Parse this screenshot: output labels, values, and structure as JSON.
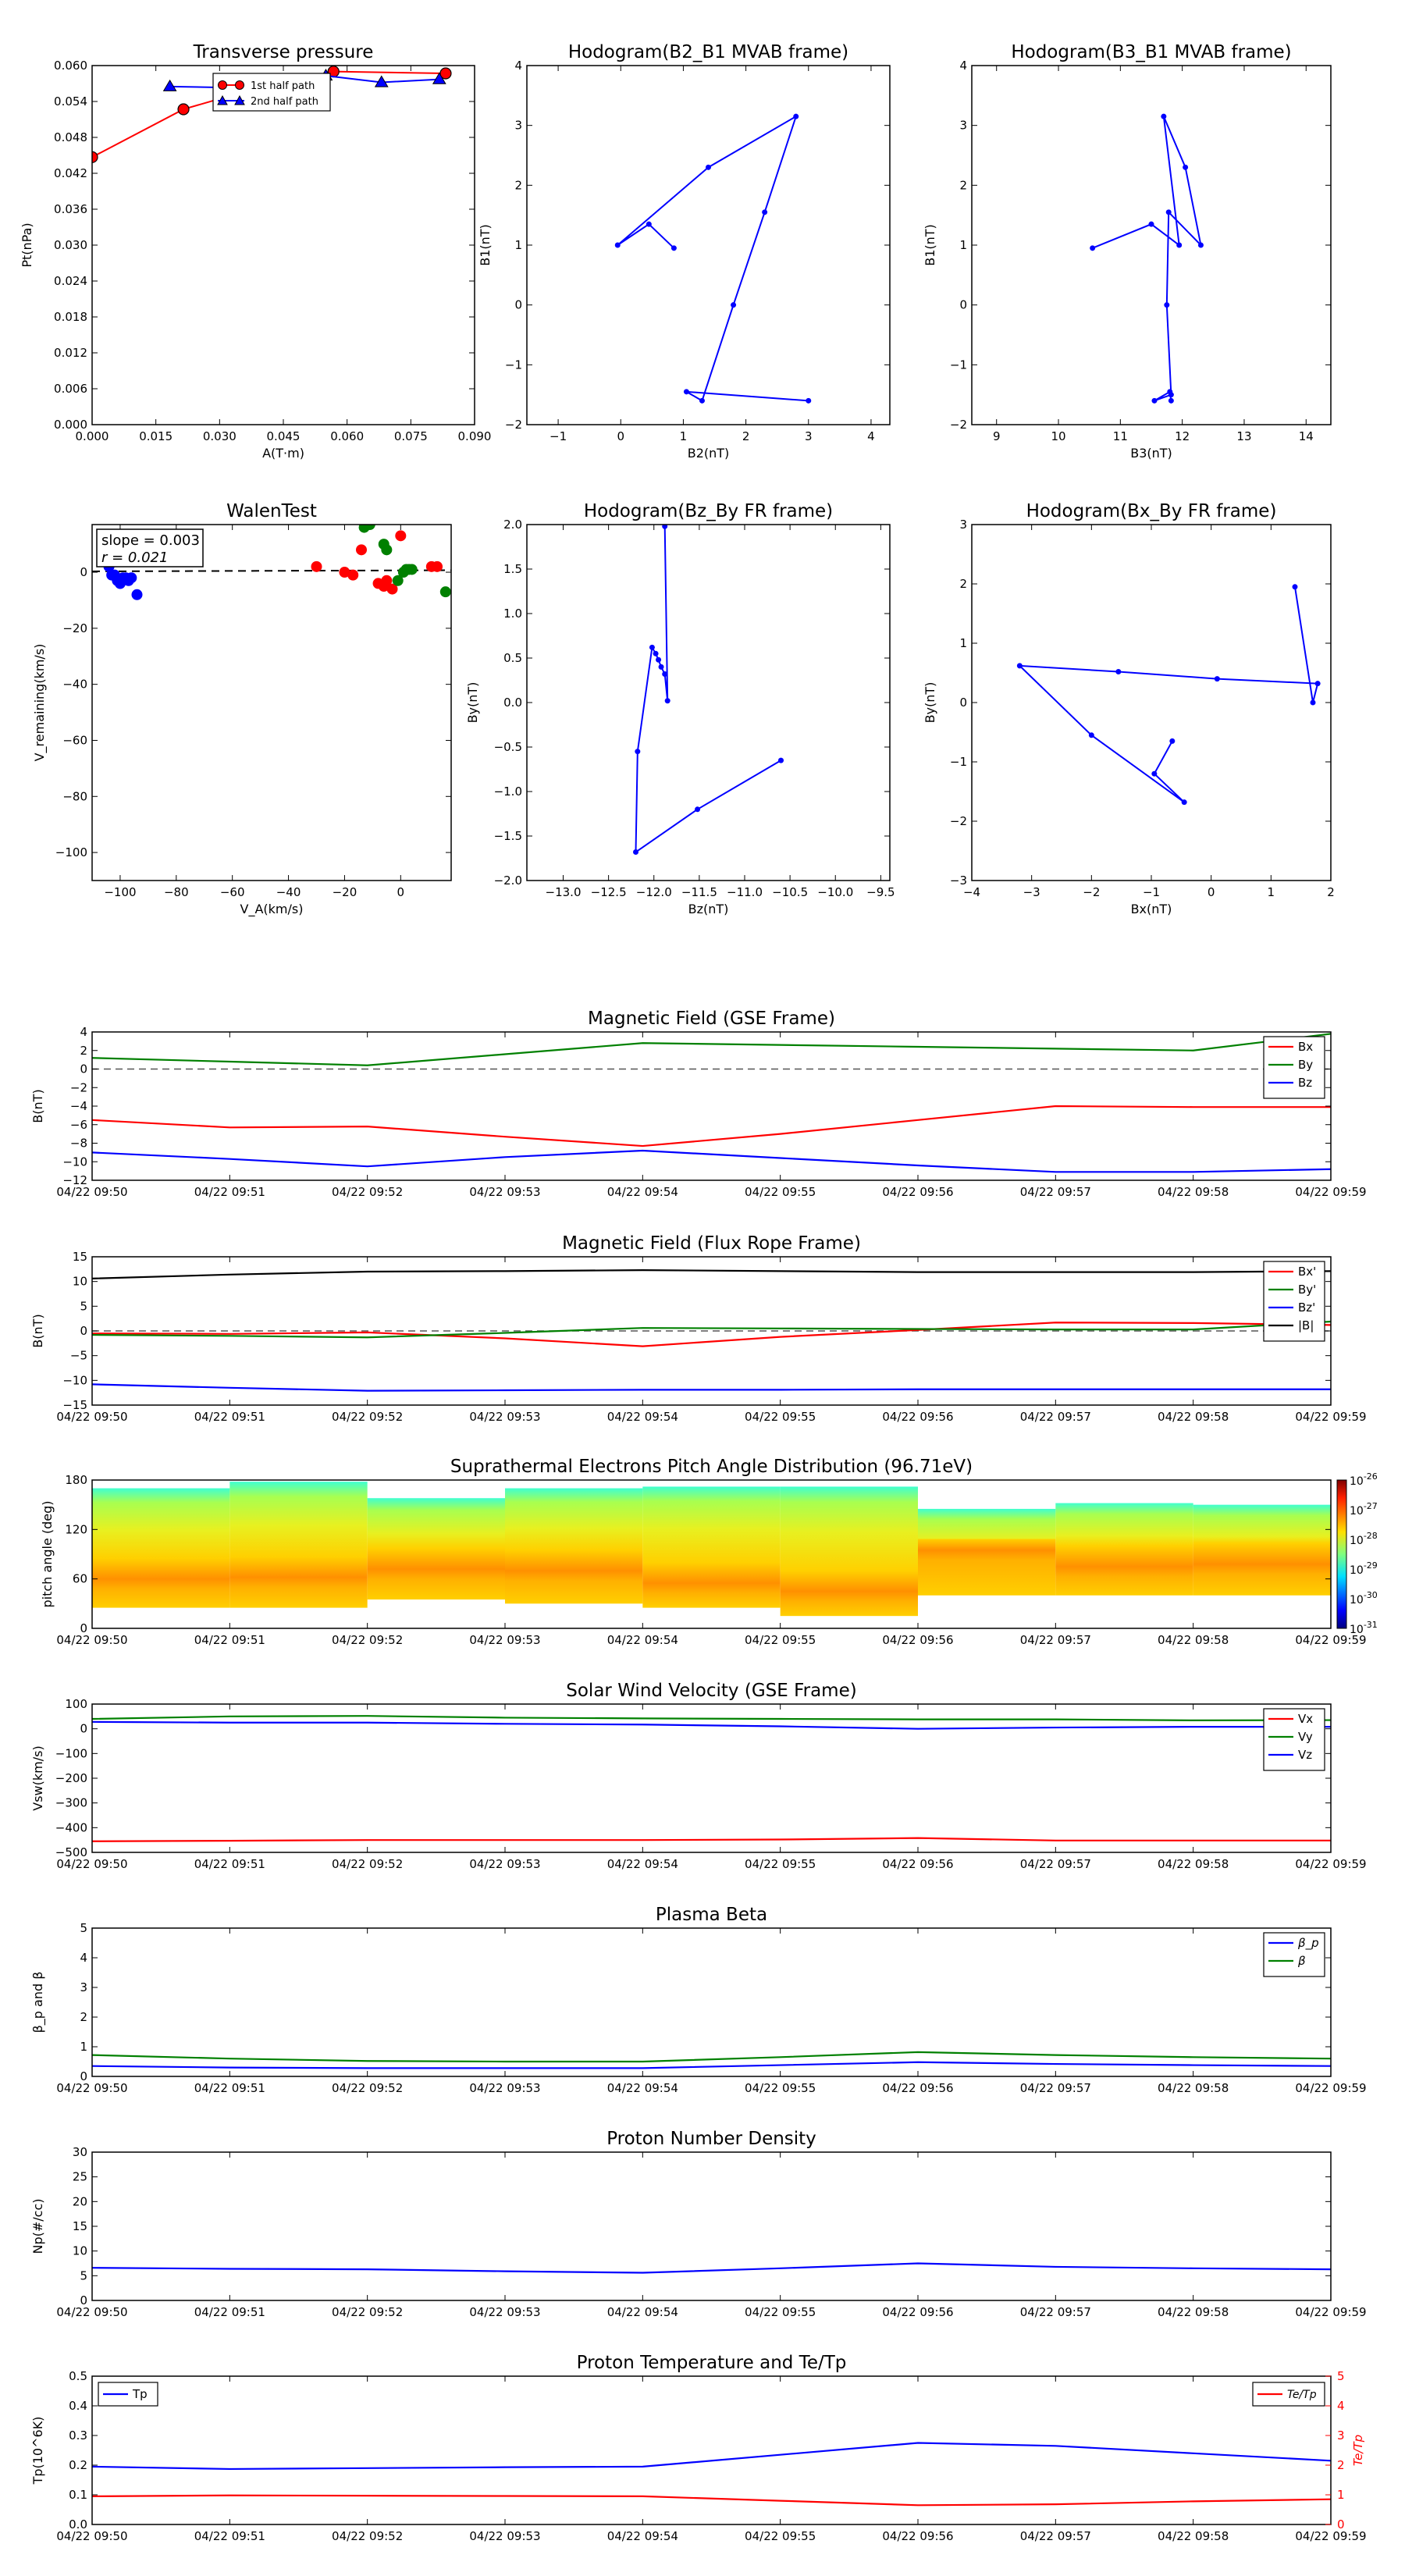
{
  "figure": {
    "time_ticks": [
      "04/22 09:50",
      "04/22 09:51",
      "04/22 09:52",
      "04/22 09:53",
      "04/22 09:54",
      "04/22 09:55",
      "04/22 09:56",
      "04/22 09:57",
      "04/22 09:58",
      "04/22 09:59"
    ],
    "colors": {
      "red": "#ff0000",
      "green": "#008000",
      "blue": "#0000ff",
      "black": "#000000",
      "gray": "#555555"
    }
  },
  "chart_data": [
    {
      "id": "pt",
      "type": "line",
      "title": "Transverse pressure",
      "xlabel": "A(T·m)",
      "ylabel": "Pt(nPa)",
      "xlim": [
        0.0,
        0.09
      ],
      "ylim": [
        0.0,
        0.06
      ],
      "xticks": [
        "0.000",
        "0.015",
        "0.030",
        "0.045",
        "0.060",
        "0.075",
        "0.090"
      ],
      "yticks": [
        "0.000",
        "0.006",
        "0.012",
        "0.018",
        "0.024",
        "0.030",
        "0.036",
        "0.042",
        "0.048",
        "0.054",
        "0.060"
      ],
      "legend_location": "top-center",
      "series": [
        {
          "name": "1st half path",
          "color": "#ff0000",
          "marker": "circle",
          "x": [
            0.0,
            0.0215,
            0.04,
            0.0568,
            0.0832
          ],
          "y": [
            0.0447,
            0.0527,
            0.0565,
            0.059,
            0.0587
          ]
        },
        {
          "name": "2nd half path",
          "color": "#0000ff",
          "marker": "triangle",
          "x": [
            0.0183,
            0.0407,
            0.055,
            0.0681,
            0.0817
          ],
          "y": [
            0.0565,
            0.0562,
            0.0583,
            0.0572,
            0.0577
          ]
        }
      ]
    },
    {
      "id": "hodo_b2b1",
      "type": "line",
      "title": "Hodogram(B2_B1 MVAB frame)",
      "xlabel": "B2(nT)",
      "ylabel": "B1(nT)",
      "xlim": [
        -1.5,
        4.3
      ],
      "ylim": [
        -2,
        4
      ],
      "xticks": [
        "−1",
        "0",
        "1",
        "2",
        "3",
        "4"
      ],
      "yticks": [
        "−2",
        "−1",
        "0",
        "1",
        "2",
        "3",
        "4"
      ],
      "series": [
        {
          "color": "#0000ff",
          "marker": "dot",
          "x": [
            0.85,
            0.45,
            -0.05,
            1.4,
            2.8,
            2.3,
            1.8,
            1.3,
            1.05,
            3.0
          ],
          "y": [
            0.95,
            1.35,
            1.0,
            2.3,
            3.15,
            1.55,
            0.0,
            -1.6,
            -1.45,
            -1.6
          ]
        }
      ]
    },
    {
      "id": "hodo_b3b1",
      "type": "line",
      "title": "Hodogram(B3_B1 MVAB frame)",
      "xlabel": "B3(nT)",
      "ylabel": "B1(nT)",
      "xlim": [
        8.6,
        14.4
      ],
      "ylim": [
        -2,
        4
      ],
      "xticks": [
        "9",
        "10",
        "11",
        "12",
        "13",
        "14"
      ],
      "yticks": [
        "−2",
        "−1",
        "0",
        "1",
        "2",
        "3",
        "4"
      ],
      "series": [
        {
          "color": "#0000ff",
          "marker": "dot",
          "x": [
            10.55,
            11.5,
            11.95,
            11.7,
            12.05,
            12.3,
            11.78,
            11.75,
            11.82,
            11.55,
            11.8,
            11.82
          ],
          "y": [
            0.95,
            1.35,
            1.0,
            3.15,
            2.3,
            1.0,
            1.55,
            0.0,
            -1.5,
            -1.6,
            -1.45,
            -1.6
          ]
        }
      ]
    },
    {
      "id": "walen",
      "type": "scatter",
      "title": "WalenTest",
      "xlabel": "V_A(km/s)",
      "ylabel": "V_remaining(km/s)",
      "xlim": [
        -110,
        18
      ],
      "ylim": [
        -110,
        17
      ],
      "xticks": [
        "−100",
        "−80",
        "−60",
        "−40",
        "−20",
        "0"
      ],
      "yticks": [
        "−100",
        "−80",
        "−60",
        "−40",
        "−20",
        "0"
      ],
      "annotations": [
        "slope = 0.003",
        "r = 0.021"
      ],
      "fit_line": {
        "color": "#000000",
        "style": "dashed",
        "y_at_left": 0.3,
        "y_at_right": 0.7
      },
      "series": [
        {
          "color": "#0000ff",
          "x": [
            -104,
            -102,
            -101,
            -100,
            -99,
            -98,
            -97,
            -100,
            -103,
            -96,
            -94,
            -106
          ],
          "y": [
            2,
            -1,
            -3,
            -4,
            -2,
            -2,
            -3,
            -4,
            -1,
            -2,
            -8,
            6
          ]
        },
        {
          "color": "#ff0000",
          "x": [
            -30,
            -17,
            -14,
            -8,
            -6,
            -5,
            -3,
            0,
            11,
            13,
            -20
          ],
          "y": [
            2,
            -1,
            8,
            -4,
            -5,
            -3,
            -6,
            13,
            2,
            2,
            0
          ]
        },
        {
          "color": "#008000",
          "x": [
            -13,
            -11,
            -6,
            -5,
            -1,
            1,
            2,
            3,
            4,
            16
          ],
          "y": [
            16,
            17,
            10,
            8,
            -3,
            0,
            1,
            1,
            1,
            -7
          ]
        }
      ]
    },
    {
      "id": "hodo_bzby",
      "type": "line",
      "title": "Hodogram(Bz_By FR frame)",
      "xlabel": "Bz(nT)",
      "ylabel": "By(nT)",
      "xlim": [
        -13.4,
        -9.4
      ],
      "ylim": [
        -2.0,
        2.0
      ],
      "xticks": [
        "−13.0",
        "−12.5",
        "−12.0",
        "−11.5",
        "−11.0",
        "−10.5",
        "−10.0",
        "−9.5"
      ],
      "yticks": [
        "−2.0",
        "−1.5",
        "−1.0",
        "−0.5",
        "0.0",
        "0.5",
        "1.0",
        "1.5",
        "2.0"
      ],
      "series": [
        {
          "color": "#0000ff",
          "marker": "dot",
          "x": [
            -11.88,
            -11.85,
            -11.88,
            -11.92,
            -11.95,
            -11.98,
            -12.02,
            -12.18,
            -12.2,
            -11.52,
            -10.6
          ],
          "y": [
            1.98,
            0.02,
            0.32,
            0.4,
            0.48,
            0.55,
            0.62,
            -0.55,
            -1.68,
            -1.2,
            -0.65
          ]
        }
      ]
    },
    {
      "id": "hodo_bxby",
      "type": "line",
      "title": "Hodogram(Bx_By FR frame)",
      "xlabel": "Bx(nT)",
      "ylabel": "By(nT)",
      "xlim": [
        -4,
        2
      ],
      "ylim": [
        -3,
        3
      ],
      "xticks": [
        "−4",
        "−3",
        "−2",
        "−1",
        "0",
        "1",
        "2"
      ],
      "yticks": [
        "−3",
        "−2",
        "−1",
        "0",
        "1",
        "2",
        "3"
      ],
      "series": [
        {
          "color": "#0000ff",
          "marker": "dot",
          "x": [
            1.4,
            1.7,
            1.78,
            0.1,
            -1.55,
            -3.2,
            -2.0,
            -0.45,
            -0.95,
            -0.65
          ],
          "y": [
            1.95,
            0.0,
            0.32,
            0.4,
            0.52,
            0.62,
            -0.55,
            -1.68,
            -1.2,
            -0.65
          ]
        }
      ]
    },
    {
      "id": "b_gse",
      "type": "line",
      "title": "Magnetic Field (GSE Frame)",
      "ylabel": "B(nT)",
      "ylim": [
        -12,
        4
      ],
      "yticks": [
        "4",
        "2",
        "0",
        "−2",
        "−4",
        "−6",
        "−8",
        "−10",
        "−12"
      ],
      "zero_line": true,
      "legend_location": "right",
      "x_minutes": [
        0,
        1,
        2,
        3,
        4,
        5,
        6,
        7,
        8,
        9
      ],
      "series": [
        {
          "name": "Bx",
          "color": "#ff0000",
          "values": [
            -5.5,
            -6.3,
            -6.2,
            -7.3,
            -8.3,
            -7.0,
            -5.5,
            -4.0,
            -4.1,
            -4.1
          ]
        },
        {
          "name": "By",
          "color": "#008000",
          "values": [
            1.2,
            0.8,
            0.4,
            1.6,
            2.8,
            2.6,
            2.4,
            2.2,
            2.0,
            3.8
          ]
        },
        {
          "name": "Bz",
          "color": "#0000ff",
          "values": [
            -9.0,
            -9.7,
            -10.5,
            -9.5,
            -8.8,
            -9.6,
            -10.4,
            -11.1,
            -11.1,
            -10.8
          ]
        }
      ]
    },
    {
      "id": "b_fr",
      "type": "line",
      "title": "Magnetic Field (Flux Rope Frame)",
      "ylabel": "B(nT)",
      "ylim": [
        -15,
        15
      ],
      "yticks": [
        "15",
        "10",
        "5",
        "0",
        "−5",
        "−10",
        "−15"
      ],
      "zero_line": true,
      "legend_location": "right",
      "x_minutes": [
        0,
        1,
        2,
        3,
        4,
        5,
        6,
        7,
        8,
        9
      ],
      "series": [
        {
          "name": "Bx'",
          "color": "#ff0000",
          "values": [
            -0.5,
            -0.6,
            -0.3,
            -1.5,
            -3.1,
            -1.2,
            0.2,
            1.7,
            1.6,
            1.2
          ]
        },
        {
          "name": "By'",
          "color": "#008000",
          "values": [
            -0.8,
            -1.0,
            -1.3,
            -0.4,
            0.6,
            0.5,
            0.4,
            0.3,
            0.3,
            1.9
          ]
        },
        {
          "name": "Bz'",
          "color": "#0000ff",
          "values": [
            -10.8,
            -11.5,
            -12.1,
            -12.0,
            -11.9,
            -11.9,
            -11.8,
            -11.8,
            -11.8,
            -11.8
          ]
        },
        {
          "name": "|B|",
          "color": "#000000",
          "values": [
            10.6,
            11.4,
            12.0,
            12.1,
            12.3,
            12.1,
            11.9,
            11.9,
            11.9,
            12.1
          ]
        }
      ]
    },
    {
      "id": "pad",
      "type": "heatmap",
      "title": "Suprathermal Electrons Pitch Angle Distribution (96.71eV)",
      "ylabel": "pitch angle (deg)",
      "ylim": [
        0,
        180
      ],
      "yticks": [
        "180",
        "120",
        "60",
        "0"
      ],
      "colorbar_ticks": [
        "10^-26",
        "10^-27",
        "10^-28",
        "10^-29",
        "10^-30",
        "10^-31"
      ],
      "columns": [
        {
          "t": [
            0,
            1
          ],
          "top": 170,
          "bottom": 25,
          "hot": 60
        },
        {
          "t": [
            1,
            2
          ],
          "top": 178,
          "bottom": 25,
          "hot": 62
        },
        {
          "t": [
            2,
            3
          ],
          "top": 158,
          "bottom": 35,
          "hot": 72
        },
        {
          "t": [
            3,
            4
          ],
          "top": 170,
          "bottom": 30,
          "hot": 70
        },
        {
          "t": [
            4,
            5
          ],
          "top": 172,
          "bottom": 25,
          "hot": 55
        },
        {
          "t": [
            5,
            6
          ],
          "top": 172,
          "bottom": 15,
          "hot": 45
        },
        {
          "t": [
            6,
            7
          ],
          "top": 145,
          "bottom": 40,
          "hot": 95
        },
        {
          "t": [
            7,
            8
          ],
          "top": 152,
          "bottom": 40,
          "hot": 75
        },
        {
          "t": [
            8,
            9
          ],
          "top": 150,
          "bottom": 40,
          "hot": 78
        }
      ]
    },
    {
      "id": "vsw",
      "type": "line",
      "title": "Solar Wind Velocity (GSE Frame)",
      "ylabel": "Vsw(km/s)",
      "ylim": [
        -500,
        100
      ],
      "yticks": [
        "100",
        "0",
        "−100",
        "−200",
        "−300",
        "−400",
        "−500"
      ],
      "legend_location": "right",
      "x_minutes": [
        0,
        1,
        2,
        3,
        4,
        5,
        6,
        7,
        8,
        9
      ],
      "series": [
        {
          "name": "Vx",
          "color": "#ff0000",
          "values": [
            -455,
            -453,
            -450,
            -450,
            -450,
            -448,
            -442,
            -452,
            -452,
            -452
          ]
        },
        {
          "name": "Vy",
          "color": "#008000",
          "values": [
            40,
            50,
            52,
            45,
            42,
            40,
            38,
            38,
            34,
            35
          ]
        },
        {
          "name": "Vz",
          "color": "#0000ff",
          "values": [
            28,
            25,
            25,
            20,
            17,
            10,
            0,
            5,
            8,
            8
          ]
        }
      ]
    },
    {
      "id": "beta",
      "type": "line",
      "title": "Plasma Beta",
      "ylabel": "β_p and β",
      "ylim": [
        0,
        5
      ],
      "yticks": [
        "5",
        "4",
        "3",
        "2",
        "1",
        "0"
      ],
      "legend_location": "top-right",
      "x_minutes": [
        0,
        1,
        2,
        3,
        4,
        5,
        6,
        7,
        8,
        9
      ],
      "series": [
        {
          "name": "β_p",
          "color": "#0000ff",
          "values": [
            0.35,
            0.3,
            0.28,
            0.28,
            0.28,
            0.38,
            0.48,
            0.42,
            0.38,
            0.35
          ]
        },
        {
          "name": "β",
          "color": "#008000",
          "values": [
            0.72,
            0.6,
            0.52,
            0.5,
            0.5,
            0.65,
            0.82,
            0.72,
            0.65,
            0.6
          ]
        }
      ]
    },
    {
      "id": "np",
      "type": "line",
      "title": "Proton Number Density",
      "ylabel": "Np(#/cc)",
      "ylim": [
        0,
        30
      ],
      "yticks": [
        "30",
        "25",
        "20",
        "15",
        "10",
        "5",
        "0"
      ],
      "x_minutes": [
        0,
        1,
        2,
        3,
        4,
        5,
        6,
        7,
        8,
        9
      ],
      "series": [
        {
          "color": "#0000ff",
          "values": [
            6.6,
            6.4,
            6.3,
            5.9,
            5.6,
            6.5,
            7.5,
            6.8,
            6.5,
            6.3
          ]
        }
      ]
    },
    {
      "id": "tp",
      "type": "line",
      "title": "Proton Temperature and Te/Tp",
      "ylabel": "Tp(10^6K)",
      "ylabel_right": "Te/Tp",
      "ylim": [
        0,
        0.5
      ],
      "ylim_right": [
        0,
        5
      ],
      "yticks": [
        "0.5",
        "0.4",
        "0.3",
        "0.2",
        "0.1",
        "0.0"
      ],
      "yticks_right": [
        "5",
        "4",
        "3",
        "2",
        "1",
        "0"
      ],
      "x_minutes": [
        0,
        1,
        2,
        3,
        4,
        5,
        6,
        7,
        8,
        9
      ],
      "series": [
        {
          "name": "Tp",
          "axis": "left",
          "color": "#0000ff",
          "values": [
            0.195,
            0.187,
            0.19,
            0.193,
            0.195,
            0.235,
            0.275,
            0.265,
            0.24,
            0.215
          ]
        },
        {
          "name": "Te/Tp",
          "axis": "right",
          "color": "#ff0000",
          "values": [
            0.95,
            0.98,
            0.97,
            0.96,
            0.95,
            0.8,
            0.65,
            0.68,
            0.78,
            0.85
          ]
        }
      ]
    }
  ]
}
